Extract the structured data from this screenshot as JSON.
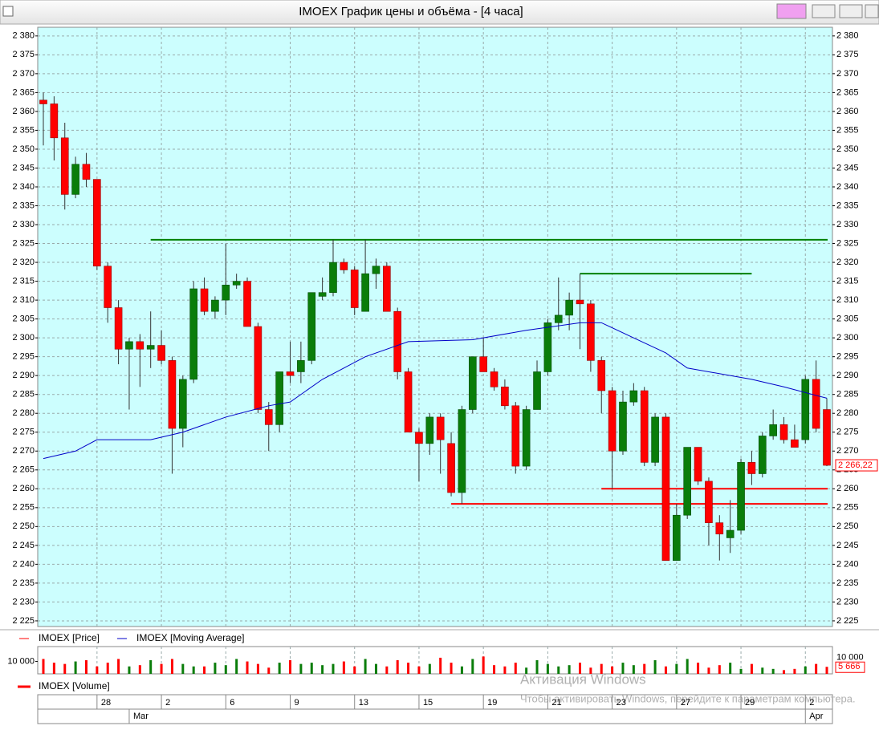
{
  "window_title": "IMOEX График цены и объёма - [4 часа]",
  "watermark": {
    "title": "Активация Windows",
    "text": "Чтобы активировать Windows, перейдите к параметрам компьютера."
  },
  "chart_data": {
    "type": "candlestick",
    "categories": [
      null,
      null,
      null,
      null,
      null,
      "28",
      null,
      null,
      null,
      null,
      null,
      "2",
      null,
      null,
      null,
      null,
      null,
      "6",
      null,
      null,
      null,
      null,
      null,
      "9",
      null,
      null,
      null,
      null,
      null,
      "13",
      null,
      null,
      null,
      null,
      null,
      "15",
      null,
      null,
      null,
      null,
      null,
      "19",
      null,
      null,
      null,
      null,
      null,
      "21",
      null,
      null,
      null,
      null,
      null,
      "23",
      null,
      null,
      null,
      null,
      null,
      "27",
      null,
      null,
      null,
      null,
      null,
      "29",
      null,
      null,
      null,
      null,
      null,
      "2",
      null,
      null
    ],
    "months": [
      null,
      null,
      null,
      null,
      null,
      null,
      null,
      null,
      "Mar",
      null,
      null,
      null,
      null,
      null,
      null,
      null,
      null,
      null,
      null,
      null,
      null,
      null,
      null,
      null,
      null,
      null,
      null,
      null,
      null,
      null,
      null,
      null,
      null,
      null,
      null,
      null,
      null,
      null,
      null,
      null,
      null,
      null,
      null,
      null,
      null,
      null,
      null,
      null,
      null,
      null,
      null,
      null,
      null,
      null,
      null,
      null,
      null,
      null,
      null,
      null,
      null,
      null,
      null,
      null,
      null,
      null,
      null,
      null,
      null,
      null,
      null,
      "Apr",
      null,
      null
    ],
    "open": [
      2363,
      2362,
      2353,
      2338,
      2346,
      2342,
      2319,
      2308,
      2297,
      2299,
      2297,
      2298,
      2294,
      2276,
      2289,
      2313,
      2307,
      2310,
      2314,
      2315,
      2303,
      2281,
      2277,
      2291,
      2291,
      2294,
      2311,
      2312,
      2320,
      2318,
      2307,
      2317,
      2319,
      2307,
      2291,
      2275,
      2272,
      2279,
      2272,
      2259,
      2281,
      2295,
      2291,
      2287,
      2282,
      2266,
      2281,
      2291,
      2304,
      2306,
      2310,
      2309,
      2294,
      2286,
      2270,
      2283,
      2286,
      2267,
      2279,
      2241,
      2253,
      2271,
      2262,
      2251,
      2247,
      2249,
      2267,
      2264,
      2274,
      2277,
      2273,
      2273,
      2289,
      2281
    ],
    "high": [
      2365,
      2364,
      2357,
      2348,
      2349,
      2342,
      2320,
      2310,
      2300,
      2301,
      2307,
      2302,
      2295,
      2290,
      2315,
      2316,
      2311,
      2325,
      2317,
      2316,
      2304,
      2283,
      2291,
      2299,
      2299,
      2312,
      2316,
      2326,
      2321,
      2319,
      2326,
      2321,
      2320,
      2308,
      2292,
      2276,
      2280,
      2280,
      2275,
      2282,
      2295,
      2300,
      2292,
      2289,
      2283,
      2282,
      2294,
      2305,
      2316,
      2312,
      2317,
      2310,
      2295,
      2287,
      2286,
      2288,
      2287,
      2280,
      2280,
      2256,
      2271,
      2271,
      2263,
      2253,
      2257,
      2268,
      2270,
      2275,
      2281,
      2279,
      2277,
      2290,
      2294,
      2284
    ],
    "low": [
      2351,
      2347,
      2334,
      2337,
      2340,
      2318,
      2304,
      2293,
      2281,
      2287,
      2292,
      2293,
      2264,
      2271,
      2288,
      2306,
      2305,
      2306,
      2313,
      2303,
      2280,
      2270,
      2275,
      2288,
      2288,
      2293,
      2310,
      2311,
      2317,
      2306,
      2307,
      2313,
      2307,
      2289,
      2275,
      2262,
      2269,
      2264,
      2258,
      2256,
      2280,
      2291,
      2286,
      2281,
      2264,
      2265,
      2281,
      2290,
      2302,
      2302,
      2297,
      2291,
      2280,
      2260,
      2269,
      2282,
      2266,
      2266,
      2241,
      2241,
      2252,
      2261,
      2245,
      2241,
      2243,
      2248,
      2261,
      2263,
      2273,
      2272,
      2271,
      2272,
      2275,
      2266
    ],
    "close": [
      2362,
      2353,
      2338,
      2346,
      2342,
      2319,
      2308,
      2297,
      2299,
      2297,
      2298,
      2294,
      2276,
      2289,
      2313,
      2307,
      2310,
      2314,
      2315,
      2303,
      2281,
      2277,
      2291,
      2290,
      2294,
      2312,
      2312,
      2320,
      2318,
      2308,
      2317,
      2319,
      2307,
      2291,
      2275,
      2272,
      2279,
      2273,
      2259,
      2281,
      2295,
      2291,
      2287,
      2282,
      2266,
      2281,
      2291,
      2304,
      2306,
      2310,
      2309,
      2294,
      2286,
      2270,
      2283,
      2286,
      2267,
      2279,
      2241,
      2253,
      2271,
      2262,
      2251,
      2248,
      2249,
      2267,
      2264,
      2274,
      2277,
      2273,
      2271,
      2289,
      2276,
      2266.22
    ],
    "price_name": "IMOEX [Price]",
    "up_color": "#0a7d0a",
    "down_color": "#ff0000",
    "moving_average": {
      "name": "IMOEX [Moving Average]",
      "color": "#0000c8",
      "x": [
        0,
        3,
        5,
        10,
        13,
        17,
        21,
        23,
        26,
        30,
        34,
        40,
        45,
        50,
        52,
        55,
        58,
        60,
        66,
        69,
        73
      ],
      "values": [
        2268,
        2270,
        2273,
        2273,
        2275,
        2279,
        2282,
        2283,
        2289,
        2295,
        2299,
        2299.5,
        2302,
        2304,
        2304,
        2300,
        2296,
        2292,
        2289,
        2287,
        2284
      ]
    },
    "levels": [
      {
        "value": 2326,
        "color": "#008000",
        "start": 10
      },
      {
        "value": 2317,
        "color": "#008000",
        "start": 50,
        "end": 66
      },
      {
        "value": 2260,
        "color": "#ff0000",
        "start": 52
      },
      {
        "value": 2256,
        "color": "#ff0000",
        "start": 38
      }
    ],
    "last_price": {
      "value": 2266.22,
      "label": "2 266,22"
    },
    "ylim": [
      2223.5,
      2382.3
    ],
    "yticks": [
      {
        "value": 2225,
        "label": "2 225"
      },
      {
        "value": 2230,
        "label": "2 230"
      },
      {
        "value": 2235,
        "label": "2 235"
      },
      {
        "value": 2240,
        "label": "2 240"
      },
      {
        "value": 2245,
        "label": "2 245"
      },
      {
        "value": 2250,
        "label": "2 250"
      },
      {
        "value": 2255,
        "label": "2 255"
      },
      {
        "value": 2260,
        "label": "2 260"
      },
      {
        "value": 2265,
        "label": "2 265"
      },
      {
        "value": 2270,
        "label": "2 270"
      },
      {
        "value": 2275,
        "label": "2 275"
      },
      {
        "value": 2280,
        "label": "2 280"
      },
      {
        "value": 2285,
        "label": "2 285"
      },
      {
        "value": 2290,
        "label": "2 290"
      },
      {
        "value": 2295,
        "label": "2 295"
      },
      {
        "value": 2300,
        "label": "2 300"
      },
      {
        "value": 2305,
        "label": "2 305"
      },
      {
        "value": 2310,
        "label": "2 310"
      },
      {
        "value": 2315,
        "label": "2 315"
      },
      {
        "value": 2320,
        "label": "2 320"
      },
      {
        "value": 2325,
        "label": "2 325"
      },
      {
        "value": 2330,
        "label": "2 330"
      },
      {
        "value": 2335,
        "label": "2 335"
      },
      {
        "value": 2340,
        "label": "2 340"
      },
      {
        "value": 2345,
        "label": "2 345"
      },
      {
        "value": 2350,
        "label": "2 350"
      },
      {
        "value": 2355,
        "label": "2 355"
      },
      {
        "value": 2360,
        "label": "2 360"
      },
      {
        "value": 2365,
        "label": "2 365"
      },
      {
        "value": 2370,
        "label": "2 370"
      },
      {
        "value": 2375,
        "label": "2 375"
      },
      {
        "value": 2380,
        "label": "2 380"
      }
    ],
    "volume": {
      "name": "IMOEX [Volume]",
      "values": [
        12000,
        9000,
        8000,
        10000,
        11000,
        6000,
        9000,
        12000,
        6000,
        7000,
        11000,
        8000,
        12000,
        8000,
        6000,
        6000,
        9000,
        7000,
        12000,
        10000,
        8000,
        5000,
        9000,
        11000,
        8000,
        9000,
        7000,
        8000,
        10000,
        6000,
        12000,
        8000,
        6000,
        11000,
        9000,
        6000,
        8000,
        13000,
        9000,
        6000,
        12000,
        14000,
        7000,
        6000,
        9000,
        5000,
        11000,
        8000,
        6000,
        7000,
        9000,
        5000,
        8000,
        6000,
        9000,
        7000,
        8000,
        11000,
        6000,
        8000,
        12000,
        9000,
        5000,
        7000,
        9000,
        4000,
        8000,
        5000,
        4000,
        3000,
        4000,
        6000,
        8000,
        5666
      ],
      "last": {
        "value": 5666,
        "label": "5 666"
      },
      "ylim": [
        0,
        22000
      ],
      "yticks": [
        {
          "value": 10000,
          "label": "10 000"
        }
      ]
    },
    "grid": true
  }
}
